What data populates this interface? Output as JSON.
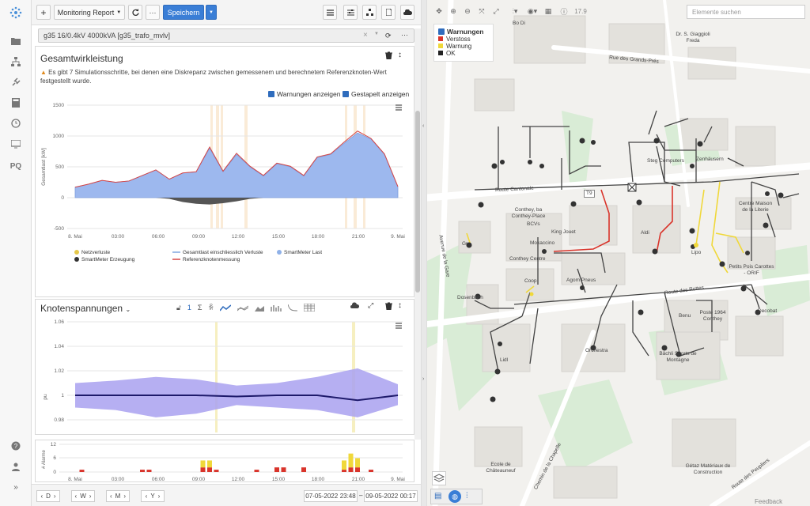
{
  "rail": {
    "icons": [
      "logo-icon",
      "folder-icon",
      "network-icon",
      "plug-icon",
      "calculator-icon",
      "clock-icon",
      "monitor-icon"
    ],
    "pq_label": "PQ",
    "bottom_icons": [
      "help-icon",
      "user-icon",
      "expand-icon"
    ]
  },
  "toolbar": {
    "add": "+",
    "report_label": "Monitoring Report",
    "save_label": "Speichern"
  },
  "selector": {
    "value": "g35 16/0.4kV 4000kVA [g35_trafo_mvlv]"
  },
  "panel1": {
    "title": "Gesamtwirkleistung",
    "warning": "Es gibt 7 Simulationsschritte, bei denen eine Diskrepanz zwischen gemessenem und berechnetem Referenzknoten-Wert festgestellt wurde.",
    "check_warnings": "Warnungen anzeigen",
    "check_stacked": "Gestapelt anzeigen",
    "ylabel": "Gesamtlast [kW]",
    "yticks": [
      "1500",
      "1000",
      "500",
      "0",
      "-500"
    ],
    "xticks": [
      "8. Mai",
      "03:00",
      "06:00",
      "09:00",
      "12:00",
      "15:00",
      "18:00",
      "21:00",
      "9. Mai"
    ],
    "legend": [
      "Netzverluste",
      "Gesamtlast einschliesslich Verluste",
      "SmartMeter Last",
      "SmartMeter Erzeugung",
      "Referenzknotenmessung"
    ]
  },
  "panel2": {
    "title": "Knotenspannungen",
    "ylabel": "pu",
    "yticks": [
      "1.06",
      "1.04",
      "1.02",
      "1",
      "0.98"
    ],
    "one_label": "1"
  },
  "panel3": {
    "ylabel": "# Alarme",
    "yticks": [
      "12",
      "6",
      "0"
    ],
    "xticks": [
      "8. Mai",
      "03:00",
      "06:00",
      "09:00",
      "12:00",
      "15:00",
      "18:00",
      "21:00",
      "9. Mai"
    ]
  },
  "bottomnav": {
    "d": "D",
    "w": "W",
    "m": "M",
    "y": "Y",
    "start_date": "07-05-2022",
    "start_time": "23:48",
    "end_date": "09-05-2022",
    "end_time": "00:17"
  },
  "map": {
    "zoom": "17.9",
    "search_placeholder": "Elemente suchen",
    "legend_title": "Warnungen",
    "legend_items": [
      {
        "label": "Verstoss",
        "color": "#d9342b"
      },
      {
        "label": "Warnung",
        "color": "#f0d83a"
      },
      {
        "label": "OK",
        "color": "#222222"
      }
    ],
    "places": [
      "Bo Di",
      "Dr. S. Giaggioli Freda",
      "Rue des Grands-Prés",
      "Steg Computers",
      "Zenhäusern",
      "Route Cantonale",
      "T9",
      "Conthey, ba Conthey-Place",
      "BCVs",
      "King Jouet",
      "Aldi",
      "Centre Maison de la Literie",
      "Lipo",
      "Mokaccino",
      "Conthey Centre",
      "Agom Pneus",
      "Coop",
      "Petits Pois Carottes - ORIF",
      "Dosenbach",
      "Route des Rottes",
      "Benu",
      "Poste 1964 Conthey",
      "Decobat",
      "Lidl",
      "Orchestra",
      "Bâchli Sports de Montagne",
      "Avenue de la Gare",
      "Ecole de Châteauneuf",
      "Chemin de la Chapelle",
      "Gétaz Matériaux de Construction",
      "Route des Peupliers",
      "Feedback",
      "Gr"
    ]
  },
  "chart_data": [
    {
      "type": "area",
      "title": "Gesamtwirkleistung",
      "ylabel": "Gesamtlast [kW]",
      "ylim": [
        -500,
        1500
      ],
      "x": [
        "00:00",
        "01:00",
        "02:00",
        "03:00",
        "04:00",
        "05:00",
        "06:00",
        "07:00",
        "08:00",
        "09:00",
        "10:00",
        "11:00",
        "12:00",
        "13:00",
        "14:00",
        "15:00",
        "16:00",
        "17:00",
        "18:00",
        "19:00",
        "20:00",
        "21:00",
        "22:00",
        "23:00",
        "24:00"
      ],
      "series": [
        {
          "name": "SmartMeter Last",
          "values": [
            170,
            220,
            280,
            250,
            270,
            360,
            450,
            300,
            400,
            420,
            800,
            420,
            700,
            500,
            350,
            550,
            500,
            350,
            650,
            700,
            880,
            1050,
            950,
            700,
            170
          ]
        },
        {
          "name": "SmartMeter Erzeugung",
          "values": [
            0,
            0,
            0,
            0,
            0,
            0,
            0,
            -20,
            -70,
            -100,
            -110,
            -90,
            -60,
            -20,
            0,
            0,
            0,
            0,
            0,
            0,
            0,
            0,
            0,
            0,
            0
          ]
        },
        {
          "name": "Referenzknotenmessung",
          "values": [
            170,
            220,
            280,
            250,
            270,
            360,
            450,
            300,
            400,
            420,
            820,
            430,
            720,
            510,
            360,
            560,
            510,
            360,
            660,
            710,
            900,
            1080,
            960,
            710,
            180
          ]
        }
      ]
    },
    {
      "type": "area",
      "title": "Knotenspannungen",
      "ylabel": "pu",
      "ylim": [
        0.97,
        1.06
      ],
      "x": [
        "00:00",
        "03:00",
        "06:00",
        "09:00",
        "12:00",
        "15:00",
        "18:00",
        "21:00",
        "24:00"
      ],
      "series": [
        {
          "name": "max",
          "values": [
            1.01,
            1.012,
            1.015,
            1.013,
            1.008,
            1.01,
            1.015,
            1.022,
            1.009
          ]
        },
        {
          "name": "median",
          "values": [
            1.0,
            1.0,
            1.0,
            1.0,
            0.999,
            1.0,
            1.0,
            0.996,
            1.0
          ]
        },
        {
          "name": "min",
          "values": [
            0.99,
            0.988,
            0.982,
            0.985,
            0.992,
            0.99,
            0.988,
            0.982,
            0.992
          ]
        }
      ]
    },
    {
      "type": "bar",
      "title": "",
      "ylabel": "# Alarme",
      "ylim": [
        0,
        12
      ],
      "x": [
        "00:30",
        "05:00",
        "05:30",
        "09:30",
        "10:00",
        "10:30",
        "13:30",
        "15:00",
        "15:30",
        "17:00",
        "20:00",
        "20:30",
        "21:00",
        "22:00"
      ],
      "series": [
        {
          "name": "Verstoss",
          "values": [
            1,
            1,
            1,
            2,
            2,
            1,
            1,
            2,
            2,
            2,
            1,
            2,
            2,
            1
          ]
        },
        {
          "name": "Warnung",
          "values": [
            0,
            0,
            0,
            3,
            3,
            0,
            0,
            0,
            0,
            0,
            4,
            6,
            4,
            0
          ]
        }
      ]
    }
  ]
}
